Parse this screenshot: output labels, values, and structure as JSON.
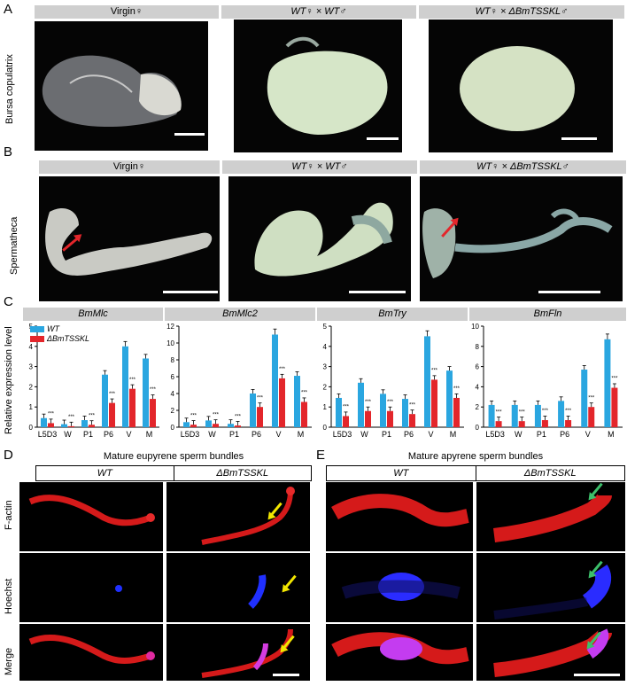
{
  "panels": {
    "A": {
      "letter": "A",
      "row_label": "Bursa copulatrix",
      "columns": [
        "Virgin♀",
        "WT♀ × WT♂",
        "WT♀ × ΔBmTSSKL♂"
      ]
    },
    "B": {
      "letter": "B",
      "row_label": "Spermatheca",
      "columns": [
        "Virgin♀",
        "WT♀ × WT♂",
        "WT♀ × ΔBmTSSKL♂"
      ]
    },
    "C": {
      "letter": "C",
      "ylabel": "Relative expression level",
      "legend": [
        "WT",
        "ΔBmTSSKL"
      ]
    },
    "D": {
      "letter": "D",
      "title": "Mature eupyrene sperm bundles",
      "columns": [
        "WT",
        "ΔBmTSSKL"
      ],
      "rows": [
        "F-actin",
        "Hoechst",
        "Merge"
      ]
    },
    "E": {
      "letter": "E",
      "title": "Mature apyrene sperm bundles",
      "columns": [
        "WT",
        "ΔBmTSSKL"
      ]
    }
  },
  "colors": {
    "wt": "#2aa6e0",
    "mutant": "#e3262b"
  },
  "chart_data": [
    {
      "type": "bar",
      "title": "BmMlc",
      "categories": [
        "L5D3",
        "W",
        "P1",
        "P6",
        "V",
        "M"
      ],
      "ylim": [
        0,
        5
      ],
      "yticks": [
        0,
        1,
        2,
        3,
        4,
        5
      ],
      "series": [
        {
          "name": "WT",
          "values": [
            0.45,
            0.15,
            0.35,
            2.6,
            4.0,
            3.4
          ]
        },
        {
          "name": "ΔBmTSSKL",
          "values": [
            0.2,
            0.05,
            0.12,
            1.2,
            1.9,
            1.4
          ]
        }
      ],
      "significance": [
        "***",
        "***",
        "***",
        "***",
        "***",
        "***"
      ]
    },
    {
      "type": "bar",
      "title": "BmMlc2",
      "categories": [
        "L5D3",
        "W",
        "P1",
        "P6",
        "V",
        "M"
      ],
      "ylim": [
        0,
        12
      ],
      "yticks": [
        0,
        2,
        4,
        6,
        8,
        10,
        12
      ],
      "series": [
        {
          "name": "WT",
          "values": [
            0.6,
            0.8,
            0.4,
            4.0,
            11.0,
            6.1
          ]
        },
        {
          "name": "ΔBmTSSKL",
          "values": [
            0.3,
            0.4,
            0.2,
            2.4,
            5.8,
            3.0
          ]
        }
      ],
      "significance": [
        "***",
        "***",
        "***",
        "***",
        "***",
        "***"
      ]
    },
    {
      "type": "bar",
      "title": "BmTry",
      "categories": [
        "L5D3",
        "W",
        "P1",
        "P6",
        "V",
        "M"
      ],
      "ylim": [
        0,
        5
      ],
      "yticks": [
        0,
        1,
        2,
        3,
        4,
        5
      ],
      "series": [
        {
          "name": "WT",
          "values": [
            1.45,
            2.2,
            1.65,
            1.4,
            4.5,
            2.8
          ]
        },
        {
          "name": "ΔBmTSSKL",
          "values": [
            0.55,
            0.8,
            0.8,
            0.65,
            2.35,
            1.45
          ]
        }
      ],
      "significance": [
        "***",
        "***",
        "***",
        "***",
        "***",
        "***"
      ]
    },
    {
      "type": "bar",
      "title": "BmFln",
      "categories": [
        "L5D3",
        "W",
        "P1",
        "P6",
        "V",
        "M"
      ],
      "ylim": [
        0,
        10
      ],
      "yticks": [
        0,
        2,
        4,
        6,
        8,
        10
      ],
      "series": [
        {
          "name": "WT",
          "values": [
            2.2,
            2.2,
            2.2,
            2.6,
            5.7,
            8.7
          ]
        },
        {
          "name": "ΔBmTSSKL",
          "values": [
            0.6,
            0.6,
            0.7,
            0.7,
            2.0,
            3.9
          ]
        }
      ],
      "significance": [
        "***",
        "***",
        "***",
        "***",
        "***",
        "***"
      ]
    }
  ]
}
